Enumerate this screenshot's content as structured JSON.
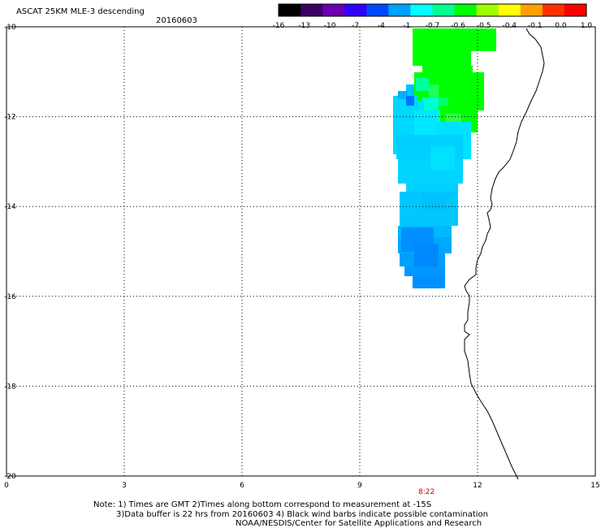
{
  "header": {
    "title": "ASCAT 25KM MLE-3 descending",
    "date": "20160603"
  },
  "colorbar": {
    "labels": [
      "-16",
      "-13",
      "-10",
      "-7",
      "-4",
      "-1",
      "-0.7",
      "-0.6",
      "-0.5",
      "-0.4",
      "-0.1",
      "0.0",
      "1.0"
    ],
    "colors": [
      "#000000",
      "#3a0060",
      "#6a00b0",
      "#3000ff",
      "#0048ff",
      "#00a0ff",
      "#00ffff",
      "#00ff90",
      "#00ff00",
      "#a0ff00",
      "#ffff00",
      "#ffa000",
      "#ff3000",
      "#ff0000"
    ]
  },
  "map": {
    "lon_min": 0,
    "lon_max": 15,
    "lat_min": -20,
    "lat_max": -10,
    "x_ticks": [
      "0",
      "3",
      "6",
      "9",
      "12",
      "15"
    ],
    "x_tick_values": [
      0,
      3,
      6,
      9,
      12,
      15
    ],
    "y_ticks": [
      "-10",
      "-12",
      "-14",
      "-16",
      "-18",
      "-20"
    ],
    "y_tick_values": [
      -10,
      -12,
      -14,
      -16,
      -18,
      -20
    ],
    "time_label": "8:22",
    "time_label_lon": 10.7,
    "grid": "dotted"
  },
  "footer": {
    "line1": "Note: 1) Times are GMT 2)Times along bottom correspond to measurement at -15S",
    "line2": "3)Data buffer is 22 hrs from 20160603 4) Black wind barbs indicate possible contamination",
    "line3": "NOAA/NESDIS/Center for Satellite Applications and Research"
  }
}
